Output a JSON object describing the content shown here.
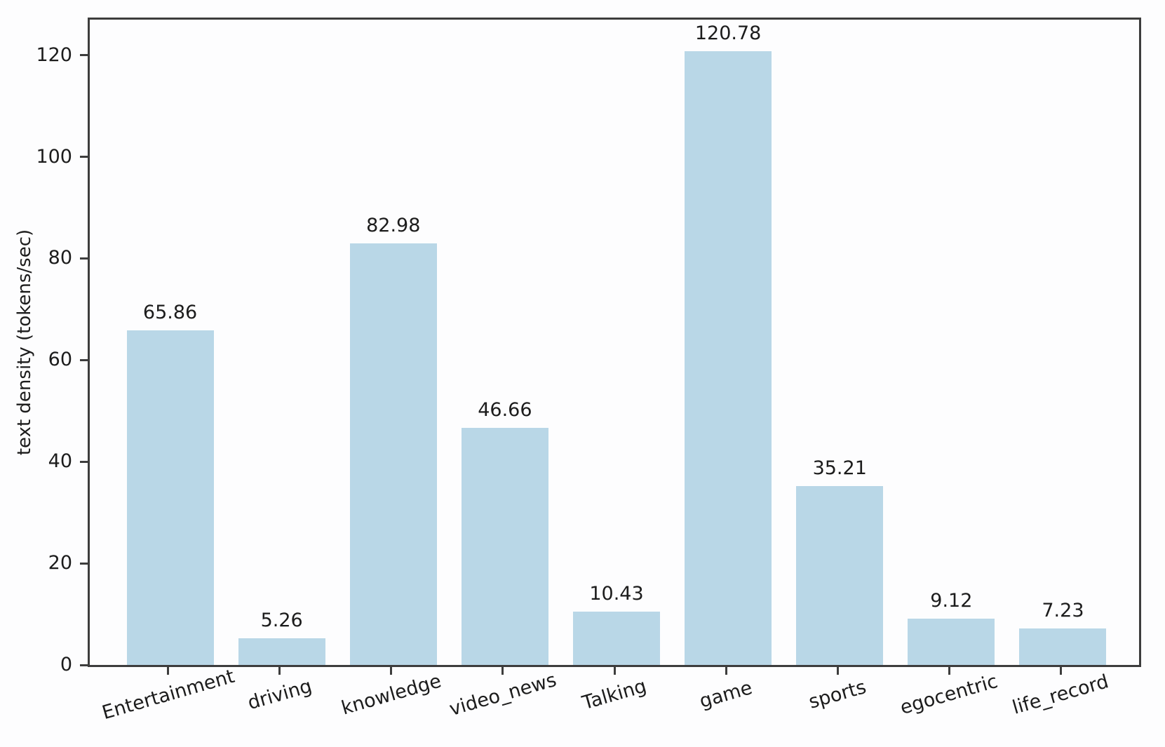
{
  "chart_data": {
    "type": "bar",
    "title": "",
    "xlabel": "",
    "ylabel": "text density (tokens/sec)",
    "categories": [
      "Entertainment",
      "driving",
      "knowledge",
      "video_news",
      "Talking",
      "game",
      "sports",
      "egocentric",
      "life_record"
    ],
    "values": [
      65.86,
      5.26,
      82.98,
      46.66,
      10.43,
      120.78,
      35.21,
      9.12,
      7.23
    ],
    "value_labels": [
      "65.86",
      "5.26",
      "82.98",
      "46.66",
      "10.43",
      "120.78",
      "35.21",
      "9.12",
      "7.23"
    ],
    "yticks": [
      0,
      20,
      40,
      60,
      80,
      100,
      120
    ],
    "ylim": [
      0,
      127
    ],
    "grid": false,
    "legend": null,
    "x_label_rotation_deg": -16,
    "bar_color": "#b9d7e7",
    "axis_color": "#3d3d3d",
    "text_color": "#1c1c1c"
  }
}
